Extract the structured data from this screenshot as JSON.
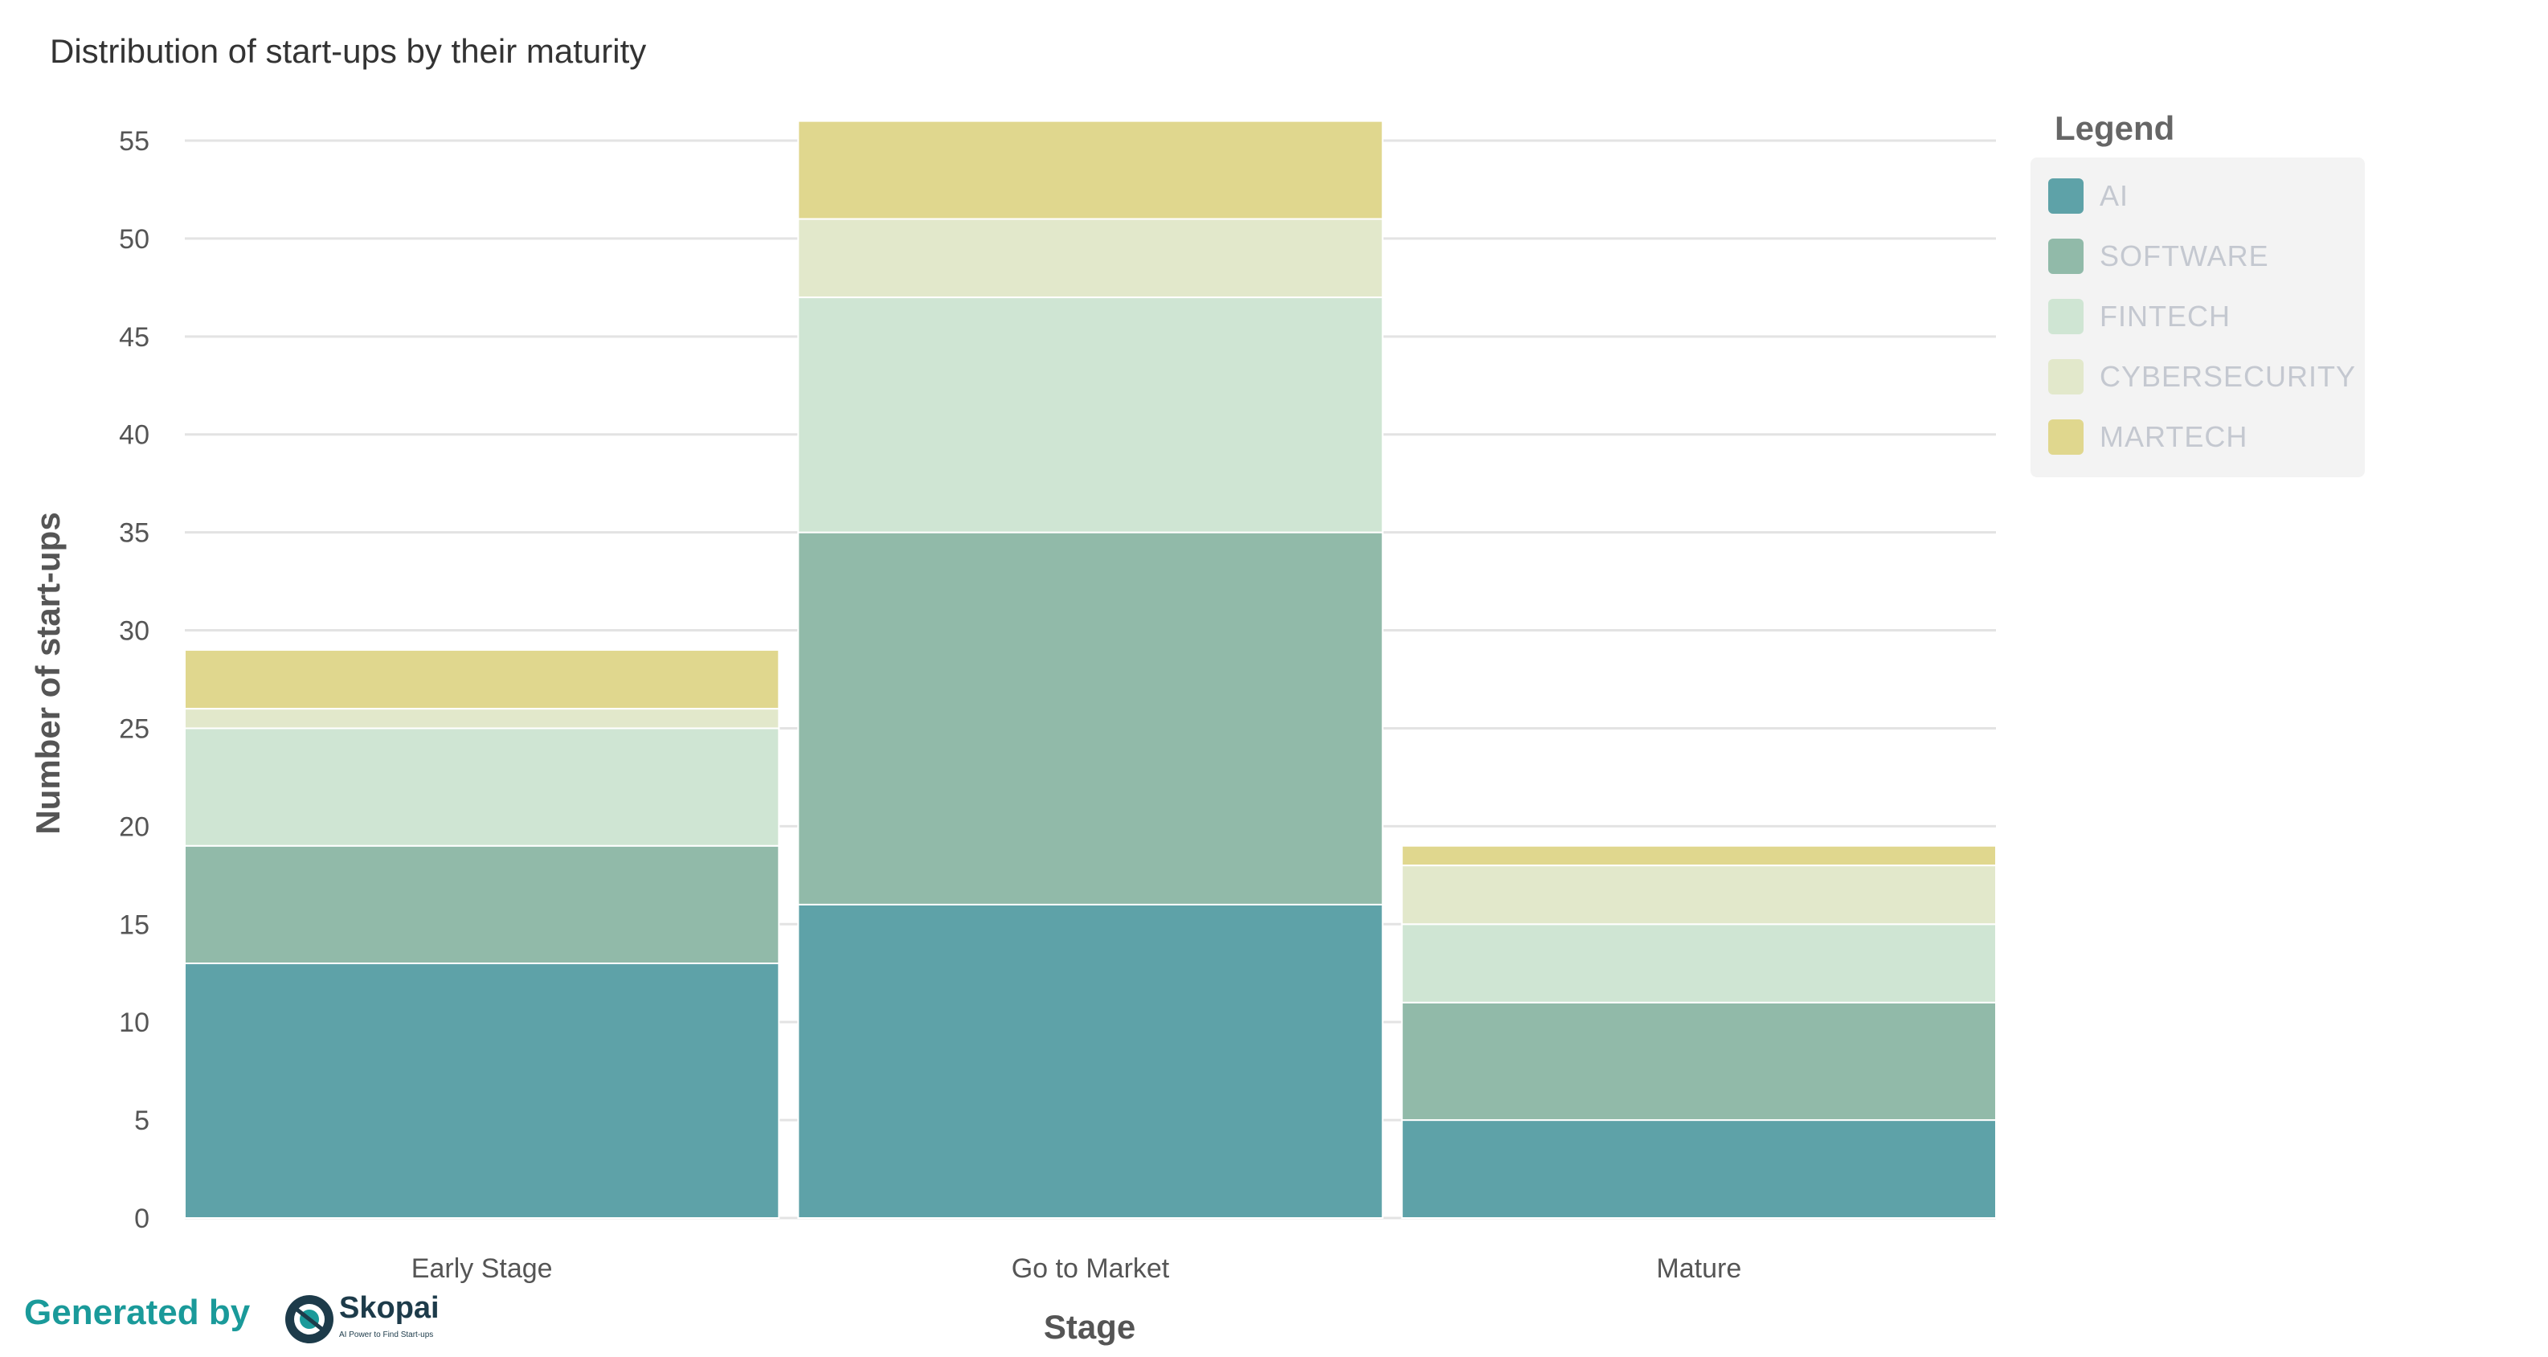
{
  "chart_data": {
    "type": "bar",
    "stacked": true,
    "title": "Distribution of start-ups by their maturity",
    "xlabel": "Stage",
    "ylabel": "Number of start-ups",
    "categories": [
      "Early Stage",
      "Go to Market",
      "Mature"
    ],
    "series": [
      {
        "name": "AI",
        "values": [
          13,
          16,
          5
        ],
        "color": "#5ea2a8"
      },
      {
        "name": "SOFTWARE",
        "values": [
          6,
          19,
          6
        ],
        "color": "#91baa9"
      },
      {
        "name": "FINTECH",
        "values": [
          6,
          12,
          4
        ],
        "color": "#cfe5d3"
      },
      {
        "name": "CYBERSECURITY",
        "values": [
          1,
          4,
          3
        ],
        "color": "#e2e8cb"
      },
      {
        "name": "MARTECH",
        "values": [
          3,
          5,
          1
        ],
        "color": "#e0d78e"
      }
    ],
    "ylim": [
      0,
      55
    ],
    "yticks": [
      0,
      5,
      10,
      15,
      20,
      25,
      30,
      35,
      40,
      45,
      50,
      55
    ],
    "grid": true,
    "legend": {
      "title": "Legend",
      "position": "top-right"
    }
  },
  "footer": {
    "generated_by": "Generated by",
    "logo_name": "Skopai",
    "logo_tagline": "AI Power to Find Start-ups"
  }
}
